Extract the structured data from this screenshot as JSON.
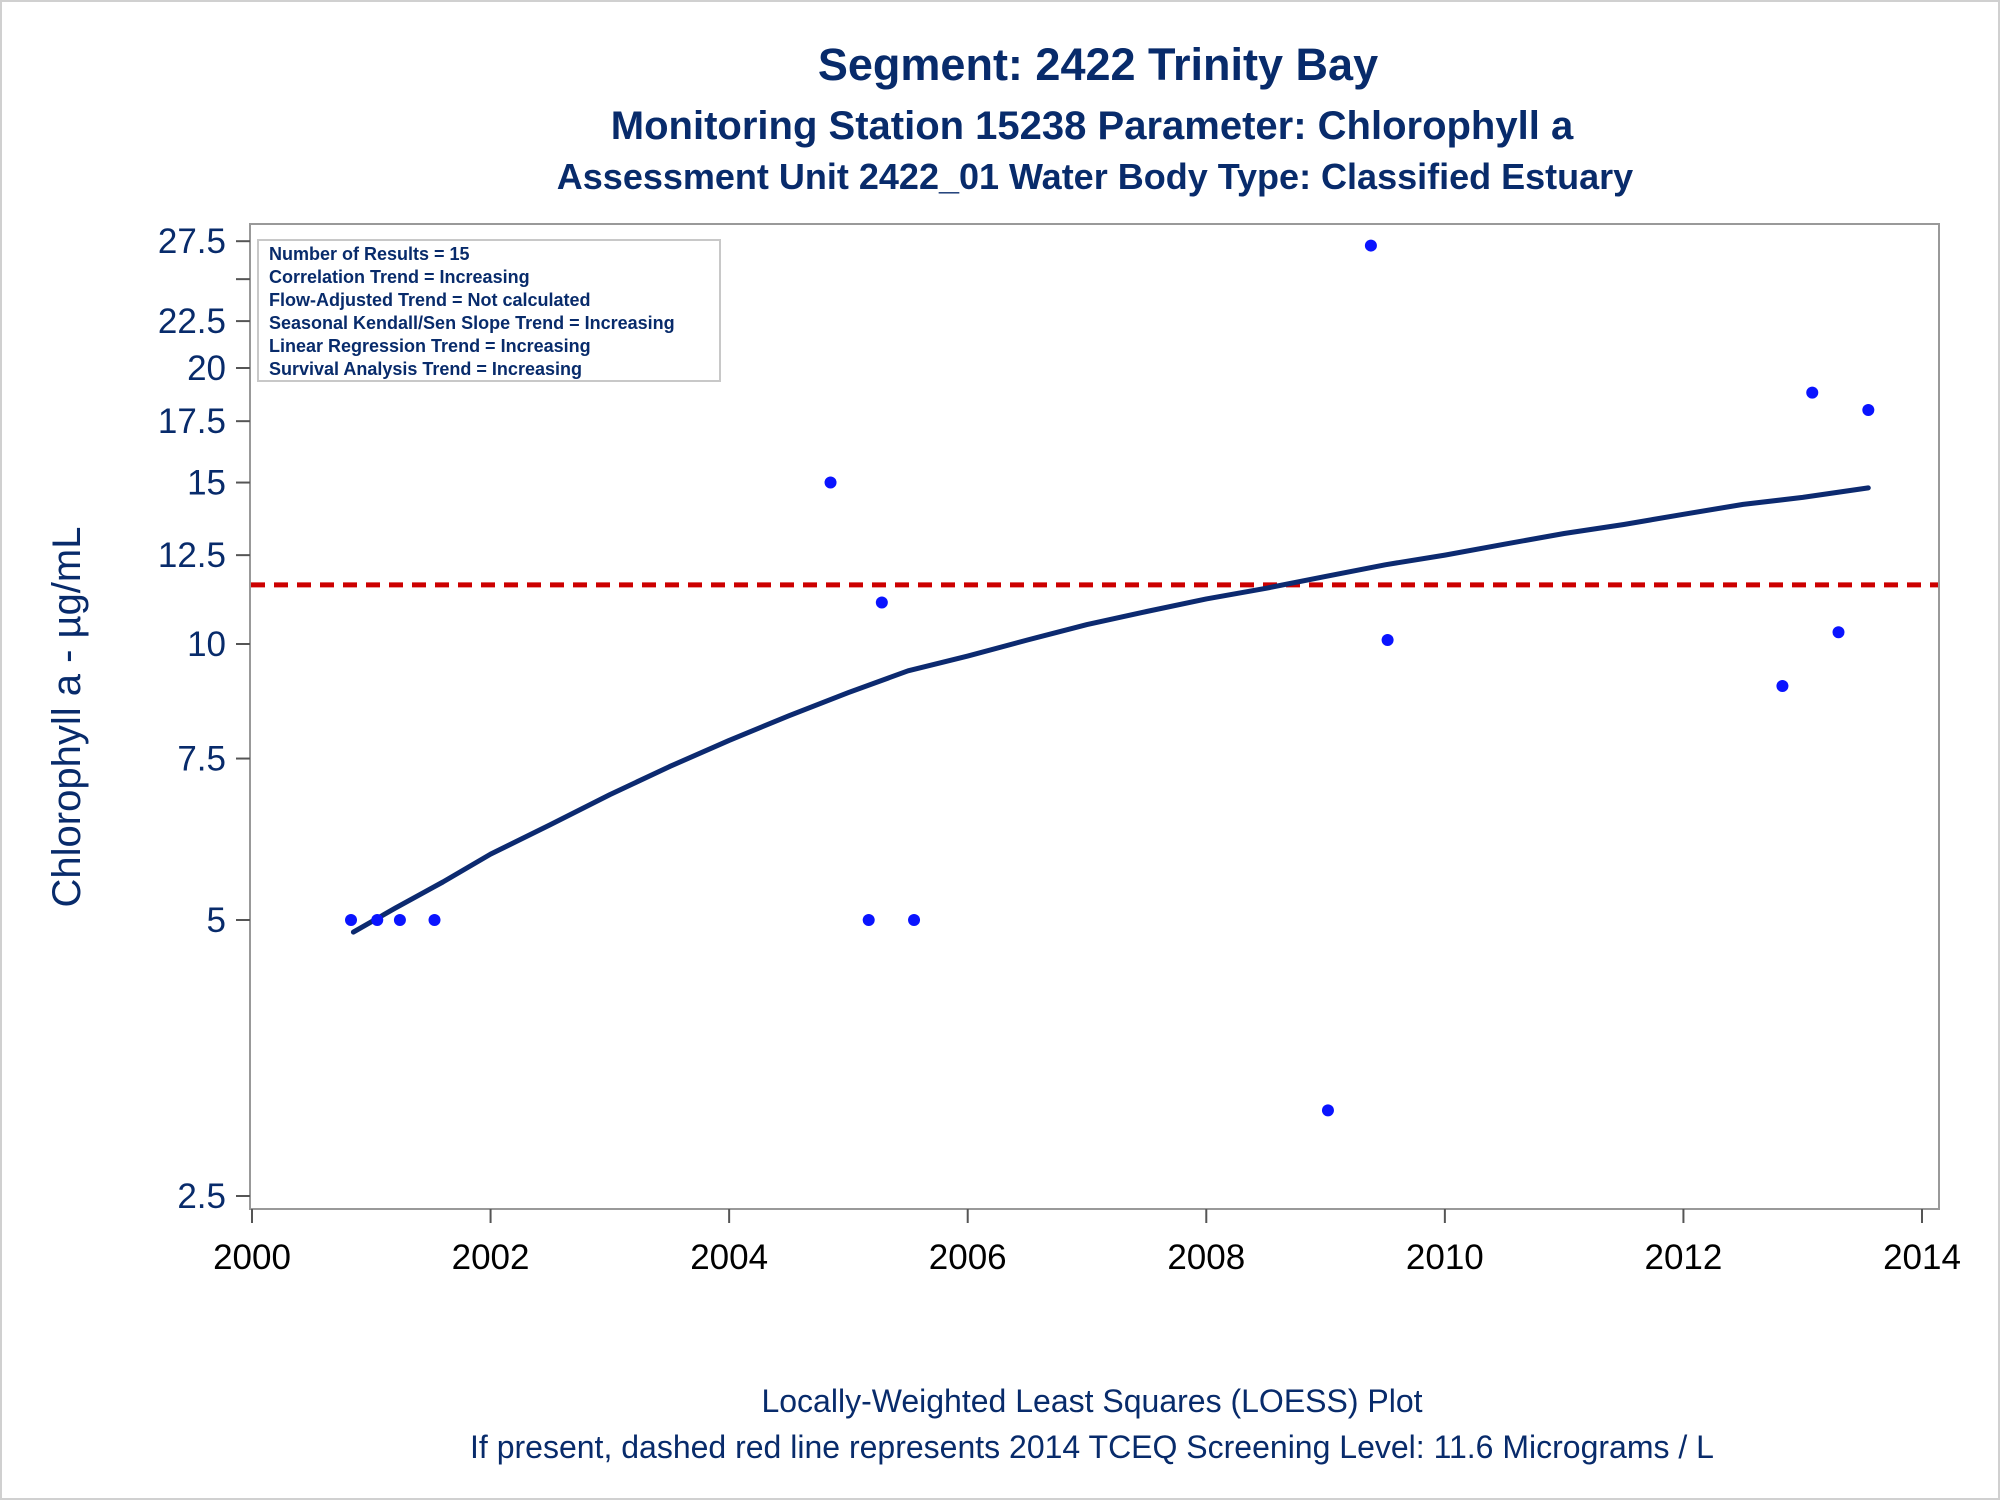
{
  "titles": {
    "line1": "Segment: 2422  Trinity Bay",
    "line2": "Monitoring Station 15238 Parameter: Chlorophyll a",
    "line3": "Assessment Unit 2422_01   Water Body Type: Classified Estuary"
  },
  "inset": {
    "lines": [
      "Number of Results = 15",
      "Correlation Trend = Increasing",
      "Flow-Adjusted Trend = Not calculated",
      "Seasonal Kendall/Sen Slope Trend = Increasing",
      "Linear Regression Trend = Increasing",
      "Survival Analysis Trend = Increasing"
    ]
  },
  "footnotes": {
    "line1": "Locally-Weighted Least Squares (LOESS) Plot",
    "line2": "If present, dashed red line represents 2014 TCEQ Screening Level: 11.6 Micrograms / L"
  },
  "colors": {
    "text": "#082b6b",
    "points": "#0a14ff",
    "loess": "#0c2a70",
    "screening": "#cc0000",
    "frame": "#999999"
  },
  "chart_data": {
    "type": "scatter",
    "xlabel": "",
    "ylabel": "Chlorophyll a -  µg/mL",
    "x_scale": "linear",
    "y_scale": "log",
    "xlim": [
      2000,
      2014
    ],
    "ylim": [
      2.3,
      29
    ],
    "x_ticks": [
      2000,
      2002,
      2004,
      2006,
      2008,
      2010,
      2012,
      2014
    ],
    "y_ticks": [
      2.5,
      5,
      7.5,
      10,
      12.5,
      15,
      17.5,
      20,
      22.5,
      27.5
    ],
    "y_tick_labels": [
      "2.5",
      "5",
      "7.5",
      "10",
      "12.5",
      "15",
      "17.5",
      "20",
      "22.5",
      "27.5"
    ],
    "y_minor_ticks": [
      25
    ],
    "grid": false,
    "legend_position": "top-left",
    "points": [
      {
        "x": 2000.83,
        "y": 5
      },
      {
        "x": 2001.05,
        "y": 5
      },
      {
        "x": 2001.24,
        "y": 5
      },
      {
        "x": 2001.53,
        "y": 5
      },
      {
        "x": 2004.85,
        "y": 15
      },
      {
        "x": 2005.17,
        "y": 5
      },
      {
        "x": 2005.28,
        "y": 11.1
      },
      {
        "x": 2005.55,
        "y": 5
      },
      {
        "x": 2009.02,
        "y": 3.1
      },
      {
        "x": 2009.38,
        "y": 27.2
      },
      {
        "x": 2009.52,
        "y": 10.1
      },
      {
        "x": 2012.83,
        "y": 9
      },
      {
        "x": 2013.08,
        "y": 18.8
      },
      {
        "x": 2013.3,
        "y": 10.3
      },
      {
        "x": 2013.55,
        "y": 18
      }
    ],
    "loess": [
      {
        "x": 2000.85,
        "y": 4.85
      },
      {
        "x": 2001.2,
        "y": 5.15
      },
      {
        "x": 2001.6,
        "y": 5.5
      },
      {
        "x": 2002.0,
        "y": 5.9
      },
      {
        "x": 2002.5,
        "y": 6.35
      },
      {
        "x": 2003.0,
        "y": 6.85
      },
      {
        "x": 2003.5,
        "y": 7.35
      },
      {
        "x": 2004.0,
        "y": 7.85
      },
      {
        "x": 2004.5,
        "y": 8.35
      },
      {
        "x": 2005.0,
        "y": 8.85
      },
      {
        "x": 2005.5,
        "y": 9.35
      },
      {
        "x": 2006.0,
        "y": 9.7
      },
      {
        "x": 2006.5,
        "y": 10.1
      },
      {
        "x": 2007.0,
        "y": 10.5
      },
      {
        "x": 2007.5,
        "y": 10.85
      },
      {
        "x": 2008.0,
        "y": 11.2
      },
      {
        "x": 2008.5,
        "y": 11.5
      },
      {
        "x": 2009.0,
        "y": 11.85
      },
      {
        "x": 2009.5,
        "y": 12.2
      },
      {
        "x": 2010.0,
        "y": 12.5
      },
      {
        "x": 2010.5,
        "y": 12.85
      },
      {
        "x": 2011.0,
        "y": 13.2
      },
      {
        "x": 2011.5,
        "y": 13.5
      },
      {
        "x": 2012.0,
        "y": 13.85
      },
      {
        "x": 2012.5,
        "y": 14.2
      },
      {
        "x": 2013.0,
        "y": 14.45
      },
      {
        "x": 2013.55,
        "y": 14.8
      }
    ],
    "screening_level": 11.6
  }
}
